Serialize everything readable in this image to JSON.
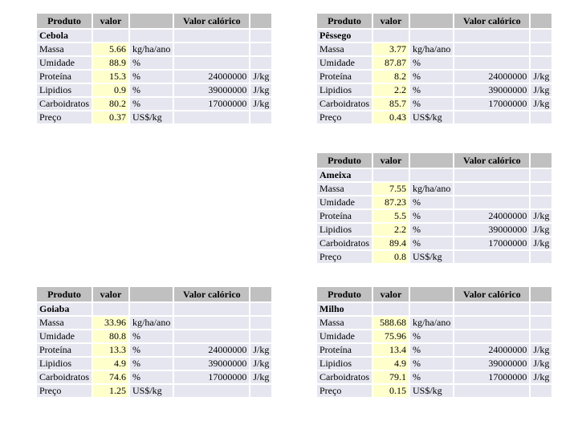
{
  "colors": {
    "page_bg": "#FFFFFF",
    "header_bg": "#C0C0C0",
    "body_bg": "#E6E6F0",
    "value_bg": "#FFFFCC"
  },
  "header": {
    "produto": "Produto",
    "valor": "valor",
    "valor_calorico": "Valor calórico"
  },
  "tables": [
    {
      "product": "Cebola",
      "rows": [
        {
          "label": "Massa",
          "value": "5.66",
          "unit": "kg/ha/ano",
          "caloric": "",
          "caloric_unit": ""
        },
        {
          "label": "Umidade",
          "value": "88.9",
          "unit": "%",
          "caloric": "",
          "caloric_unit": ""
        },
        {
          "label": "Proteína",
          "value": "15.3",
          "unit": "%",
          "caloric": "24000000",
          "caloric_unit": "J/kg"
        },
        {
          "label": "Lipidios",
          "value": "0.9",
          "unit": "%",
          "caloric": "39000000",
          "caloric_unit": "J/kg"
        },
        {
          "label": "Carboidratos",
          "value": "80.2",
          "unit": "%",
          "caloric": "17000000",
          "caloric_unit": "J/kg"
        },
        {
          "label": "Preço",
          "value": "0.37",
          "unit": "US$/kg",
          "caloric": "",
          "caloric_unit": ""
        }
      ]
    },
    {
      "product": "Pêssego",
      "rows": [
        {
          "label": "Massa",
          "value": "3.77",
          "unit": "kg/ha/ano",
          "caloric": "",
          "caloric_unit": ""
        },
        {
          "label": "Umidade",
          "value": "87.87",
          "unit": "%",
          "caloric": "",
          "caloric_unit": ""
        },
        {
          "label": "Proteína",
          "value": "8.2",
          "unit": "%",
          "caloric": "24000000",
          "caloric_unit": "J/kg"
        },
        {
          "label": "Lipidios",
          "value": "2.2",
          "unit": "%",
          "caloric": "39000000",
          "caloric_unit": "J/kg"
        },
        {
          "label": "Carboidratos",
          "value": "85.7",
          "unit": "%",
          "caloric": "17000000",
          "caloric_unit": "J/kg"
        },
        {
          "label": "Preço",
          "value": "0.43",
          "unit": "US$/kg",
          "caloric": "",
          "caloric_unit": ""
        }
      ]
    },
    {
      "product": "Ameixa",
      "rows": [
        {
          "label": "Massa",
          "value": "7.55",
          "unit": "kg/ha/ano",
          "caloric": "",
          "caloric_unit": ""
        },
        {
          "label": "Umidade",
          "value": "87.23",
          "unit": "%",
          "caloric": "",
          "caloric_unit": ""
        },
        {
          "label": "Proteína",
          "value": "5.5",
          "unit": "%",
          "caloric": "24000000",
          "caloric_unit": "J/kg"
        },
        {
          "label": "Lipidios",
          "value": "2.2",
          "unit": "%",
          "caloric": "39000000",
          "caloric_unit": "J/kg"
        },
        {
          "label": "Carboidratos",
          "value": "89.4",
          "unit": "%",
          "caloric": "17000000",
          "caloric_unit": "J/kg"
        },
        {
          "label": "Preço",
          "value": "0.8",
          "unit": "US$/kg",
          "caloric": "",
          "caloric_unit": ""
        }
      ]
    },
    {
      "product": "Goiaba",
      "rows": [
        {
          "label": "Massa",
          "value": "33.96",
          "unit": "kg/ha/ano",
          "caloric": "",
          "caloric_unit": ""
        },
        {
          "label": "Umidade",
          "value": "80.8",
          "unit": "%",
          "caloric": "",
          "caloric_unit": ""
        },
        {
          "label": "Proteína",
          "value": "13.3",
          "unit": "%",
          "caloric": "24000000",
          "caloric_unit": "J/kg"
        },
        {
          "label": "Lipidios",
          "value": "4.9",
          "unit": "%",
          "caloric": "39000000",
          "caloric_unit": "J/kg"
        },
        {
          "label": "Carboidratos",
          "value": "74.6",
          "unit": "%",
          "caloric": "17000000",
          "caloric_unit": "J/kg"
        },
        {
          "label": "Preço",
          "value": "1.25",
          "unit": "US$/kg",
          "caloric": "",
          "caloric_unit": ""
        }
      ]
    },
    {
      "product": "Milho",
      "rows": [
        {
          "label": "Massa",
          "value": "588.68",
          "unit": "kg/ha/ano",
          "caloric": "",
          "caloric_unit": ""
        },
        {
          "label": "Umidade",
          "value": "75.96",
          "unit": "%",
          "caloric": "",
          "caloric_unit": ""
        },
        {
          "label": "Proteína",
          "value": "13.4",
          "unit": "%",
          "caloric": "24000000",
          "caloric_unit": "J/kg"
        },
        {
          "label": "Lipidios",
          "value": "4.9",
          "unit": "%",
          "caloric": "39000000",
          "caloric_unit": "J/kg"
        },
        {
          "label": "Carboidratos",
          "value": "79.1",
          "unit": "%",
          "caloric": "17000000",
          "caloric_unit": "J/kg"
        },
        {
          "label": "Preço",
          "value": "0.15",
          "unit": "US$/kg",
          "caloric": "",
          "caloric_unit": ""
        }
      ]
    }
  ]
}
